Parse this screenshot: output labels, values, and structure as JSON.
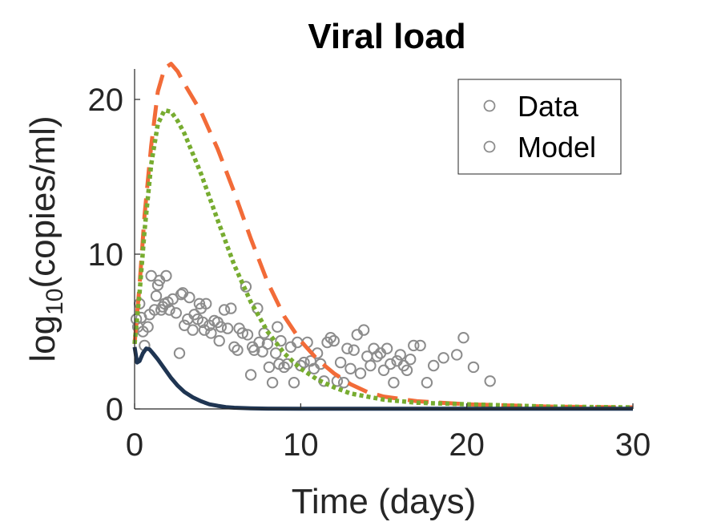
{
  "chart_data": {
    "type": "scatter",
    "title": "Viral load",
    "xlabel": "Time (days)",
    "ylabel": {
      "prefix": "log",
      "subscript": "10",
      "suffix": "(copies/ml)"
    },
    "xlim": [
      0,
      30
    ],
    "ylim": [
      0,
      22
    ],
    "xticks": [
      "0",
      "10",
      "20",
      "30"
    ],
    "yticks": [
      "0",
      "10",
      "20"
    ],
    "grid": false,
    "legend": {
      "placement": "top-right",
      "entries": [
        "Data",
        "Model"
      ]
    },
    "colors": {
      "data": "#8c8c8c",
      "legend_marker": "#8c8c8c",
      "dashed": "#f26b38",
      "dotted": "#77ac30",
      "solid": "#1f3552"
    },
    "scatter": {
      "name": "Data",
      "points": [
        [
          0.1,
          5.8
        ],
        [
          0.2,
          5.3
        ],
        [
          0.3,
          6.8
        ],
        [
          0.4,
          5.9
        ],
        [
          0.5,
          5.0
        ],
        [
          0.6,
          4.1
        ],
        [
          0.8,
          5.3
        ],
        [
          0.9,
          6.1
        ],
        [
          1.0,
          8.6
        ],
        [
          1.2,
          6.4
        ],
        [
          1.3,
          7.3
        ],
        [
          1.4,
          8.0
        ],
        [
          1.5,
          8.3
        ],
        [
          1.6,
          6.4
        ],
        [
          1.7,
          6.6
        ],
        [
          1.8,
          6.8
        ],
        [
          1.9,
          8.6
        ],
        [
          2.0,
          6.9
        ],
        [
          2.1,
          6.4
        ],
        [
          2.3,
          7.1
        ],
        [
          2.5,
          6.2
        ],
        [
          2.7,
          3.6
        ],
        [
          2.8,
          7.4
        ],
        [
          2.9,
          7.5
        ],
        [
          3.0,
          5.4
        ],
        [
          3.2,
          5.8
        ],
        [
          3.3,
          7.2
        ],
        [
          3.5,
          5.1
        ],
        [
          3.6,
          6.1
        ],
        [
          3.8,
          5.8
        ],
        [
          3.9,
          6.8
        ],
        [
          4.0,
          6.5
        ],
        [
          4.1,
          5.6
        ],
        [
          4.2,
          5.1
        ],
        [
          4.3,
          6.8
        ],
        [
          4.5,
          5.4
        ],
        [
          4.6,
          4.9
        ],
        [
          4.8,
          5.7
        ],
        [
          5.0,
          5.6
        ],
        [
          5.1,
          4.4
        ],
        [
          5.2,
          5.3
        ],
        [
          5.4,
          6.4
        ],
        [
          5.6,
          5.2
        ],
        [
          5.8,
          6.5
        ],
        [
          6.0,
          4.0
        ],
        [
          6.2,
          3.8
        ],
        [
          6.3,
          5.2
        ],
        [
          6.5,
          4.9
        ],
        [
          6.7,
          7.9
        ],
        [
          6.8,
          4.8
        ],
        [
          7.0,
          2.2
        ],
        [
          7.1,
          4.0
        ],
        [
          7.2,
          3.8
        ],
        [
          7.4,
          6.5
        ],
        [
          7.5,
          4.3
        ],
        [
          7.7,
          3.7
        ],
        [
          7.8,
          4.9
        ],
        [
          8.0,
          4.2
        ],
        [
          8.1,
          2.7
        ],
        [
          8.3,
          1.7
        ],
        [
          8.5,
          3.6
        ],
        [
          8.6,
          5.3
        ],
        [
          8.7,
          2.9
        ],
        [
          8.8,
          4.4
        ],
        [
          9.0,
          2.7
        ],
        [
          9.2,
          2.9
        ],
        [
          9.4,
          4.0
        ],
        [
          9.6,
          1.7
        ],
        [
          9.8,
          4.3
        ],
        [
          10.0,
          2.8
        ],
        [
          10.2,
          3.0
        ],
        [
          10.4,
          4.3
        ],
        [
          10.6,
          3.1
        ],
        [
          10.8,
          2.6
        ],
        [
          11.0,
          3.6
        ],
        [
          11.2,
          2.9
        ],
        [
          11.4,
          1.8
        ],
        [
          11.6,
          4.3
        ],
        [
          11.8,
          4.6
        ],
        [
          12.0,
          4.4
        ],
        [
          12.2,
          1.8
        ],
        [
          12.4,
          3.0
        ],
        [
          12.6,
          1.7
        ],
        [
          12.8,
          3.9
        ],
        [
          13.0,
          2.6
        ],
        [
          13.2,
          3.8
        ],
        [
          13.4,
          4.8
        ],
        [
          13.6,
          2.3
        ],
        [
          13.8,
          5.1
        ],
        [
          14.0,
          3.4
        ],
        [
          14.2,
          2.8
        ],
        [
          14.4,
          3.9
        ],
        [
          14.6,
          3.4
        ],
        [
          14.8,
          3.6
        ],
        [
          15.0,
          2.5
        ],
        [
          15.2,
          3.9
        ],
        [
          15.4,
          2.9
        ],
        [
          15.6,
          1.7
        ],
        [
          15.8,
          3.1
        ],
        [
          16.0,
          3.5
        ],
        [
          16.2,
          2.8
        ],
        [
          16.4,
          2.5
        ],
        [
          16.6,
          3.2
        ],
        [
          16.8,
          4.1
        ],
        [
          17.2,
          4.1
        ],
        [
          17.6,
          1.7
        ],
        [
          18.0,
          2.8
        ],
        [
          18.6,
          3.3
        ],
        [
          19.4,
          3.5
        ],
        [
          19.8,
          4.6
        ],
        [
          20.4,
          2.7
        ],
        [
          21.4,
          1.8
        ]
      ]
    },
    "series": [
      {
        "style": "dashed",
        "x": [
          0,
          0.3,
          0.6,
          1.0,
          1.4,
          1.8,
          2.2,
          2.6,
          3.0,
          4.0,
          5.0,
          6.0,
          7.0,
          8.0,
          9.0,
          10.0,
          11.0,
          12.0,
          13.0,
          14.0,
          15.0,
          17.0,
          20.0,
          25.0,
          30.0
        ],
        "y": [
          4.2,
          8.0,
          12.5,
          17.0,
          20.5,
          22.0,
          22.3,
          21.8,
          21.0,
          19.2,
          16.8,
          14.0,
          11.0,
          8.2,
          6.0,
          4.4,
          3.2,
          2.3,
          1.6,
          1.1,
          0.8,
          0.5,
          0.3,
          0.15,
          0.1
        ]
      },
      {
        "style": "dotted",
        "x": [
          0,
          0.3,
          0.6,
          1.0,
          1.4,
          1.8,
          2.2,
          2.6,
          3.0,
          4.0,
          5.0,
          6.0,
          7.0,
          8.0,
          9.0,
          10.0,
          11.0,
          12.0,
          13.0,
          14.0,
          15.0,
          17.0,
          20.0,
          25.0,
          30.0
        ],
        "y": [
          4.2,
          7.5,
          11.5,
          15.8,
          18.4,
          19.3,
          19.2,
          18.6,
          17.8,
          15.2,
          12.2,
          9.3,
          6.9,
          5.0,
          3.6,
          2.6,
          1.9,
          1.4,
          1.0,
          0.8,
          0.6,
          0.4,
          0.3,
          0.15,
          0.1
        ]
      },
      {
        "style": "solid",
        "x": [
          0,
          0.15,
          0.3,
          0.5,
          0.7,
          0.9,
          1.1,
          1.4,
          1.8,
          2.2,
          2.6,
          3.0,
          3.5,
          4.0,
          4.5,
          5.0,
          5.5,
          6.0,
          7.0,
          8.0,
          10.0,
          15.0,
          20.0,
          30.0
        ],
        "y": [
          4.0,
          3.0,
          3.1,
          3.6,
          3.9,
          3.85,
          3.6,
          3.2,
          2.6,
          2.0,
          1.5,
          1.1,
          0.75,
          0.5,
          0.3,
          0.2,
          0.12,
          0.08,
          0.04,
          0.02,
          0.01,
          0.01,
          0.01,
          0.01
        ]
      }
    ]
  }
}
